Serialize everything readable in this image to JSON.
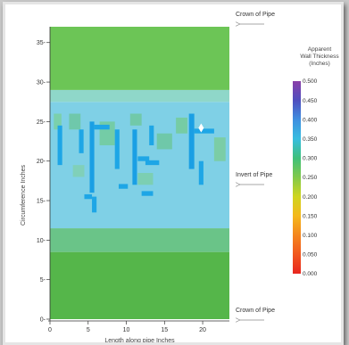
{
  "chart_data": {
    "type": "heatmap",
    "title": "",
    "xlabel": "Length along pipe Inches",
    "ylabel": "Circumference Inches",
    "xlim": [
      0,
      23.5
    ],
    "ylim": [
      0,
      37
    ],
    "x_ticks": [
      0,
      5,
      10,
      15,
      20
    ],
    "y_ticks": [
      0,
      5,
      10,
      15,
      20,
      25,
      30,
      35
    ],
    "colorbar": {
      "title_lines": [
        "Apparent",
        "Wall Thickness",
        "(Inches)"
      ],
      "min": 0.0,
      "max": 0.5,
      "ticks": [
        0.5,
        0.45,
        0.4,
        0.35,
        0.3,
        0.25,
        0.2,
        0.15,
        0.1,
        0.05,
        0.0
      ],
      "tick_labels": [
        "0.500",
        "0.450",
        "0.400",
        "0.350",
        "0.300",
        "0.250",
        "0.200",
        "0.150",
        "0.100",
        "0.050",
        "0.000"
      ],
      "stops": [
        {
          "value": 0.0,
          "color": "#e8261f"
        },
        {
          "value": 0.05,
          "color": "#f1571e"
        },
        {
          "value": 0.1,
          "color": "#f4861d"
        },
        {
          "value": 0.15,
          "color": "#f4b81c"
        },
        {
          "value": 0.2,
          "color": "#cfd51f"
        },
        {
          "value": 0.25,
          "color": "#82c94a"
        },
        {
          "value": 0.3,
          "color": "#3fc07a"
        },
        {
          "value": 0.35,
          "color": "#37bde0"
        },
        {
          "value": 0.4,
          "color": "#3f8fe0"
        },
        {
          "value": 0.45,
          "color": "#4f4fbe"
        },
        {
          "value": 0.5,
          "color": "#8a3fa8"
        }
      ]
    },
    "bands": [
      {
        "y_from": 0,
        "y_to": 8.5,
        "value": 0.28,
        "color": "#55b64a"
      },
      {
        "y_from": 8.5,
        "y_to": 11.5,
        "value": 0.3,
        "color": "#6ac488"
      },
      {
        "y_from": 11.5,
        "y_to": 27.5,
        "value": 0.34,
        "color": "#7fd0e6"
      },
      {
        "y_from": 27.5,
        "y_to": 29,
        "value": 0.32,
        "color": "#8fd7c9"
      },
      {
        "y_from": 29,
        "y_to": 37,
        "value": 0.28,
        "color": "#6cc556"
      }
    ],
    "thin_patches": [
      {
        "x": 0.5,
        "y": 24,
        "w": 1,
        "h": 2,
        "color": "#7ad0a0"
      },
      {
        "x": 2.5,
        "y": 24,
        "w": 1.5,
        "h": 2,
        "color": "#6cc7a0"
      },
      {
        "x": 6.5,
        "y": 22,
        "w": 2,
        "h": 3,
        "color": "#72cb9a"
      },
      {
        "x": 10.5,
        "y": 24.5,
        "w": 1.5,
        "h": 1.5,
        "color": "#6fc89e"
      },
      {
        "x": 14,
        "y": 21.5,
        "w": 2,
        "h": 2,
        "color": "#6cc79d"
      },
      {
        "x": 16.5,
        "y": 23.5,
        "w": 1.5,
        "h": 2,
        "color": "#74cb98"
      },
      {
        "x": 21.5,
        "y": 20,
        "w": 1.5,
        "h": 3,
        "color": "#7acd9a"
      },
      {
        "x": 3,
        "y": 18,
        "w": 1.5,
        "h": 1.5,
        "color": "#80d0b0"
      },
      {
        "x": 11.5,
        "y": 17,
        "w": 2,
        "h": 1.5,
        "color": "#7bcfa8"
      }
    ],
    "thick_patches": [
      {
        "x": 1,
        "y": 19.5,
        "w": 0.6,
        "h": 5,
        "color": "#1ea6e6"
      },
      {
        "x": 3.8,
        "y": 21,
        "w": 0.6,
        "h": 3,
        "color": "#1ea6e6"
      },
      {
        "x": 5.2,
        "y": 16,
        "w": 0.6,
        "h": 9,
        "color": "#1a9fe4"
      },
      {
        "x": 5.8,
        "y": 24,
        "w": 2,
        "h": 0.6,
        "color": "#1ea6e6"
      },
      {
        "x": 5.5,
        "y": 13.5,
        "w": 0.6,
        "h": 2,
        "color": "#1ea6e6"
      },
      {
        "x": 8.5,
        "y": 19,
        "w": 0.6,
        "h": 5,
        "color": "#1ea6e6"
      },
      {
        "x": 9,
        "y": 16.5,
        "w": 1.2,
        "h": 0.6,
        "color": "#1ea6e6"
      },
      {
        "x": 10.8,
        "y": 17,
        "w": 0.6,
        "h": 7,
        "color": "#1a9fe4"
      },
      {
        "x": 11.5,
        "y": 20,
        "w": 1.5,
        "h": 0.6,
        "color": "#1ea6e6"
      },
      {
        "x": 13,
        "y": 22,
        "w": 0.6,
        "h": 2.5,
        "color": "#1ea6e6"
      },
      {
        "x": 12.5,
        "y": 19.5,
        "w": 1.8,
        "h": 0.6,
        "color": "#1ea6e6"
      },
      {
        "x": 18.2,
        "y": 19,
        "w": 0.7,
        "h": 7,
        "color": "#1a9fe4"
      },
      {
        "x": 18.9,
        "y": 23.5,
        "w": 2.6,
        "h": 0.6,
        "color": "#1ea6e6"
      },
      {
        "x": 19.5,
        "y": 17,
        "w": 0.6,
        "h": 3,
        "color": "#1ea6e6"
      },
      {
        "x": 4.5,
        "y": 15.2,
        "w": 1,
        "h": 0.6,
        "color": "#1ea6e6"
      },
      {
        "x": 12,
        "y": 15.6,
        "w": 1.5,
        "h": 0.6,
        "color": "#1ea6e6"
      }
    ],
    "max_points": [
      {
        "x": 19.8,
        "y": 24.2,
        "color": "#ffffff"
      }
    ],
    "annotations": [
      {
        "text": "Crown of Pipe",
        "y": 37
      },
      {
        "text": "Invert of Pipe",
        "y": 18.5
      },
      {
        "text": "Crown of Pipe",
        "y": 0
      }
    ]
  }
}
